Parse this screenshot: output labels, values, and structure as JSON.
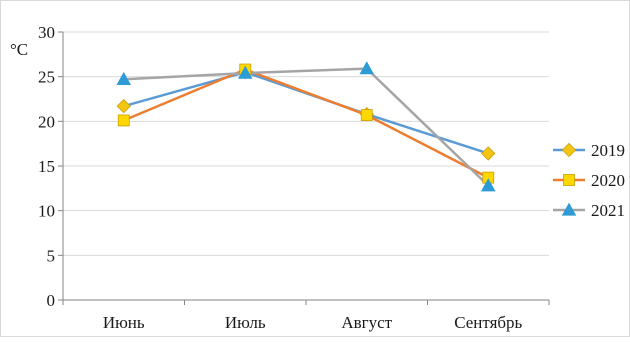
{
  "chart_data": {
    "type": "line",
    "title": "",
    "xlabel": "",
    "ylabel": "°C",
    "categories": [
      "Июнь",
      "Июль",
      "Август",
      "Сентябрь"
    ],
    "ylim": [
      0,
      30
    ],
    "yticks": [
      0,
      5,
      10,
      15,
      20,
      25,
      30
    ],
    "grid": true,
    "legend_position": "right",
    "series": [
      {
        "name": "2019",
        "values": [
          21.7,
          25.5,
          20.8,
          16.4
        ],
        "color": "#5b9bd5",
        "marker": "diamond",
        "marker_color": "#f2c514"
      },
      {
        "name": "2020",
        "values": [
          20.1,
          25.8,
          20.7,
          13.7
        ],
        "color": "#ed7d31",
        "marker": "square",
        "marker_color": "#ffd700"
      },
      {
        "name": "2021",
        "values": [
          24.7,
          25.4,
          25.9,
          12.8
        ],
        "color": "#a5a5a5",
        "marker": "triangle",
        "marker_color": "#2e9bd6"
      }
    ]
  }
}
